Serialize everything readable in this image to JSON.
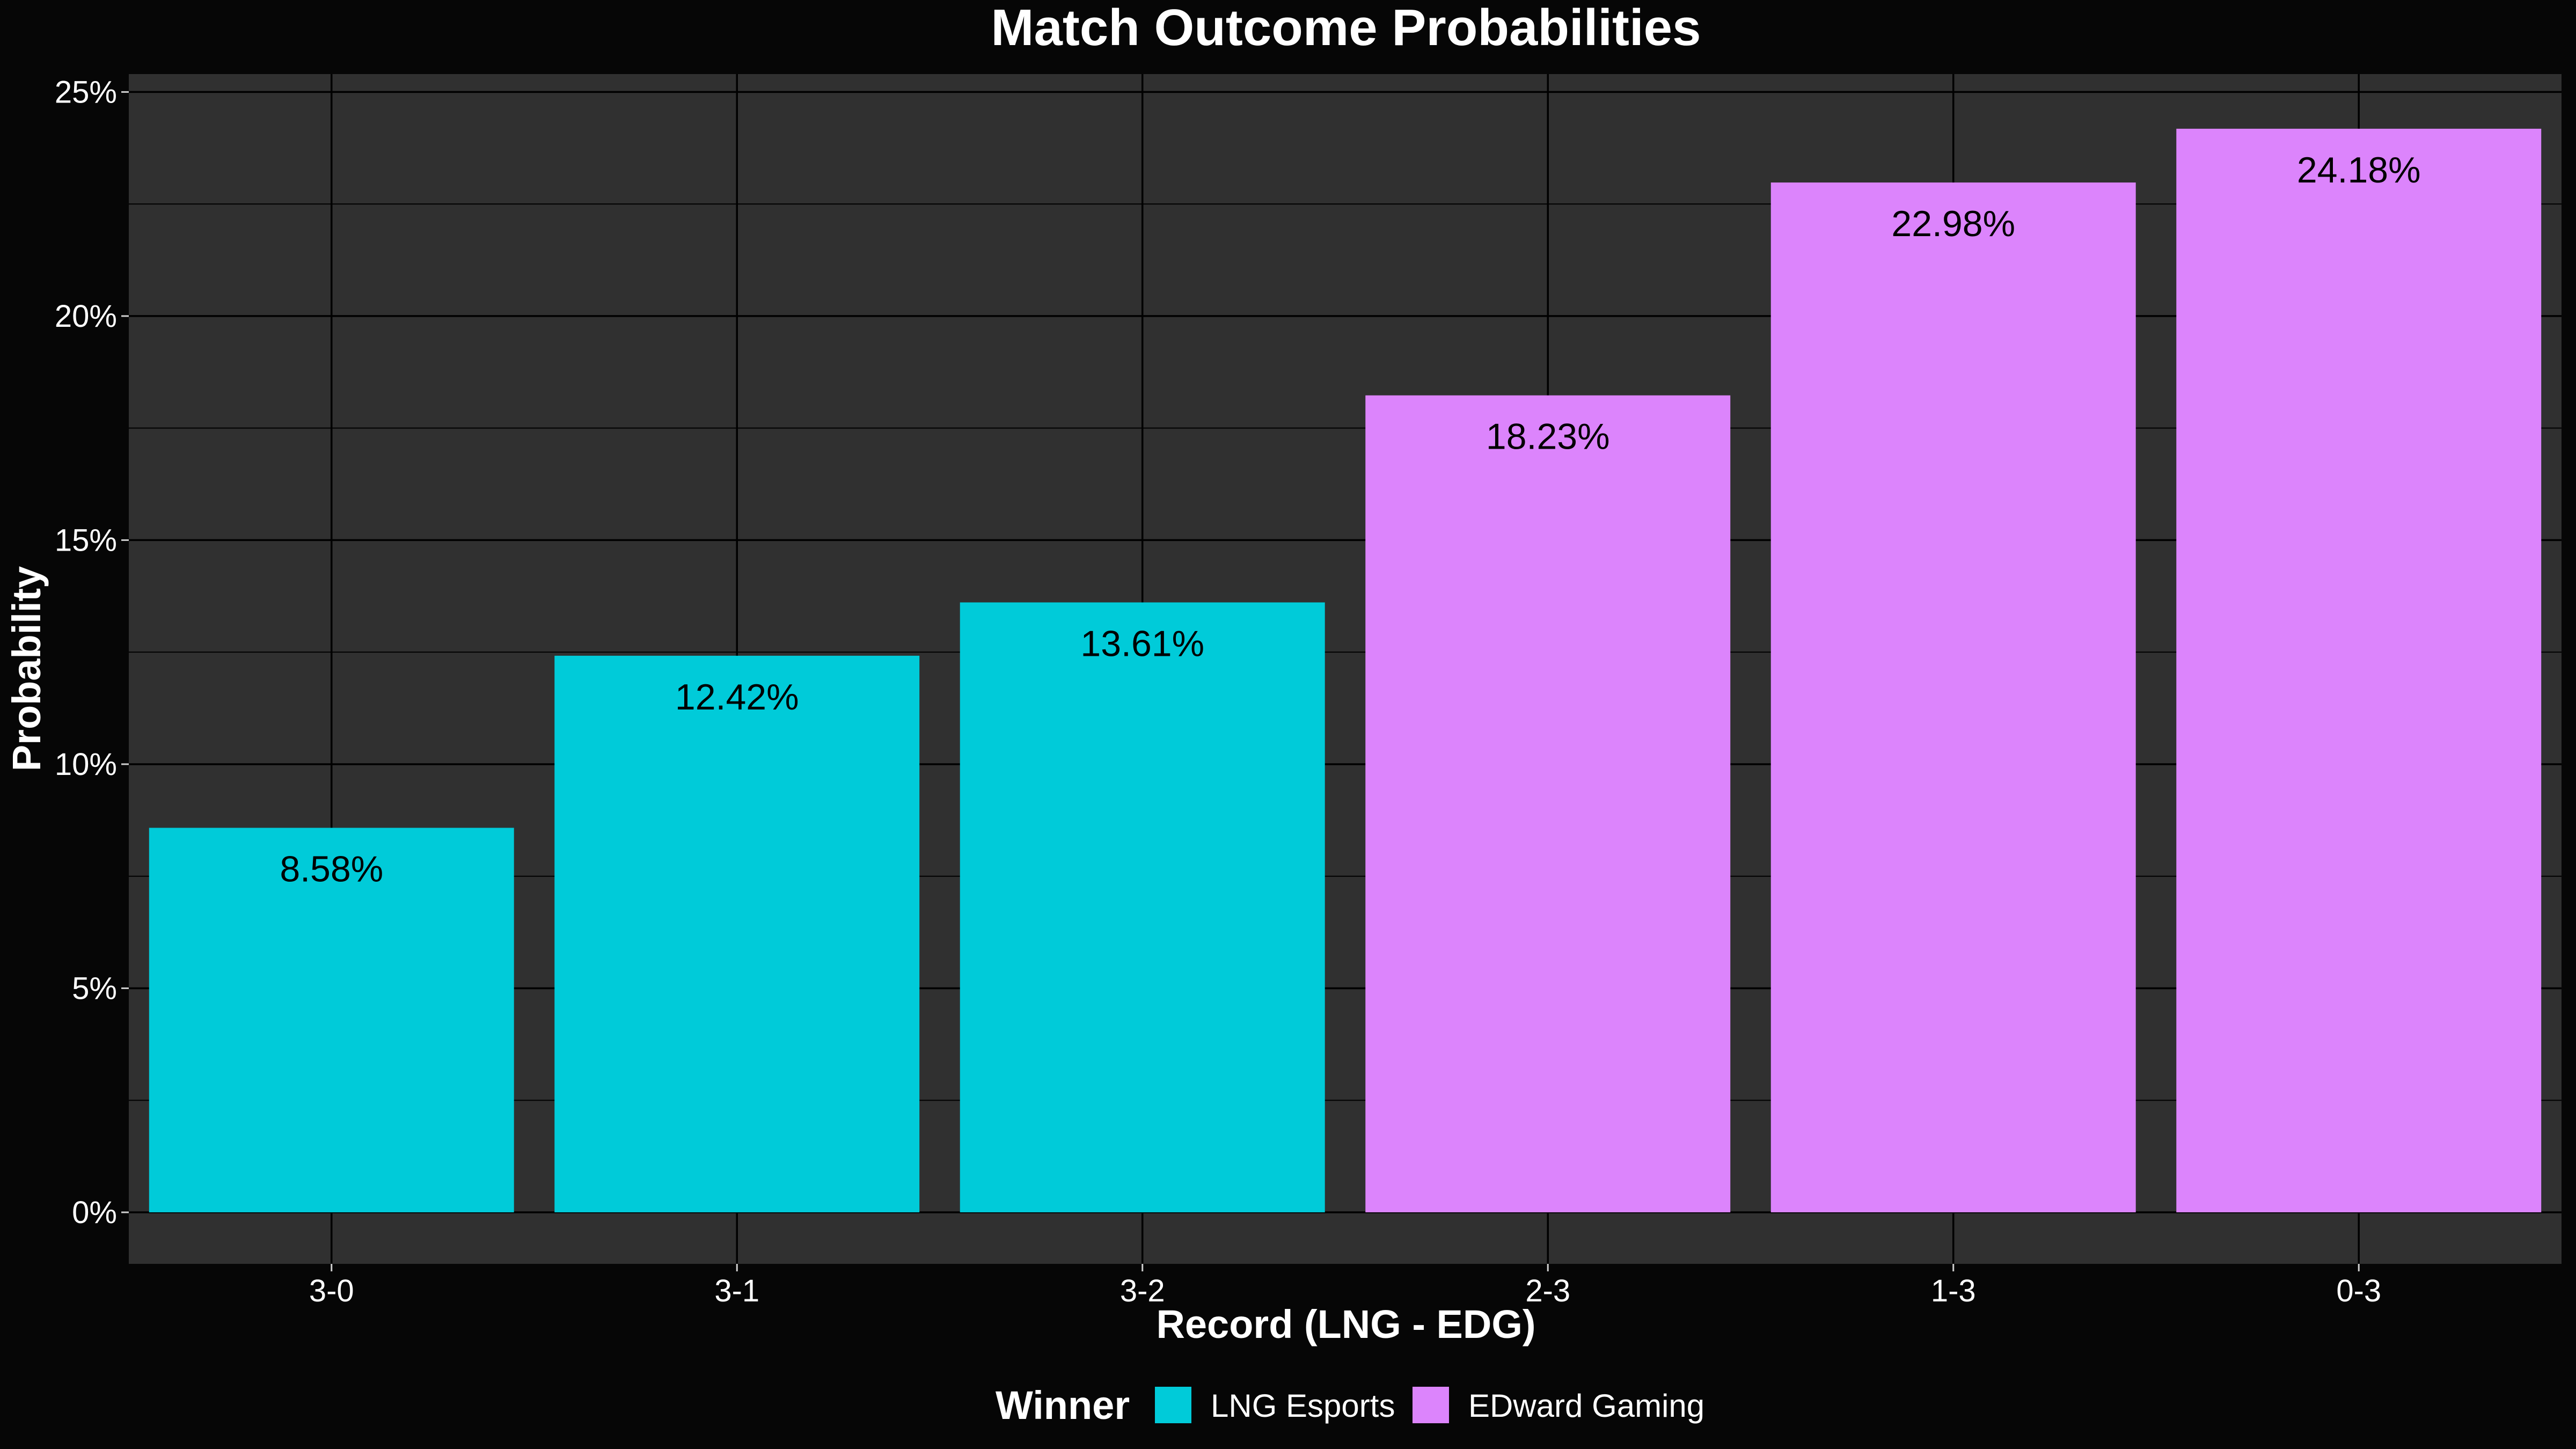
{
  "chart_data": {
    "type": "bar",
    "title": "Match Outcome Probabilities",
    "xlabel": "Record (LNG - EDG)",
    "ylabel": "Probability",
    "categories": [
      "3-0",
      "3-1",
      "3-2",
      "2-3",
      "1-3",
      "0-3"
    ],
    "values": [
      8.58,
      12.42,
      13.61,
      18.23,
      22.98,
      24.18
    ],
    "value_labels": [
      "8.58%",
      "12.42%",
      "13.61%",
      "18.23%",
      "22.98%",
      "24.18%"
    ],
    "winners": [
      "LNG Esports",
      "LNG Esports",
      "LNG Esports",
      "EDward Gaming",
      "EDward Gaming",
      "EDward Gaming"
    ],
    "ylim": [
      -1.15,
      25.4
    ],
    "yticks": [
      0,
      5,
      10,
      15,
      20,
      25
    ],
    "ytick_labels": [
      "0%",
      "5%",
      "10%",
      "15%",
      "20%",
      "25%"
    ],
    "grid": true,
    "legend": {
      "title": "Winner",
      "position": "bottom",
      "entries": [
        {
          "name": "LNG Esports",
          "color": "#00CBD9"
        },
        {
          "name": "EDward Gaming",
          "color": "#DC84FC"
        }
      ]
    },
    "colors": {
      "background": "#060606",
      "panel": "#303030",
      "grid": "#000000",
      "text": "#FFFFFF",
      "label_text": "#000000"
    }
  }
}
